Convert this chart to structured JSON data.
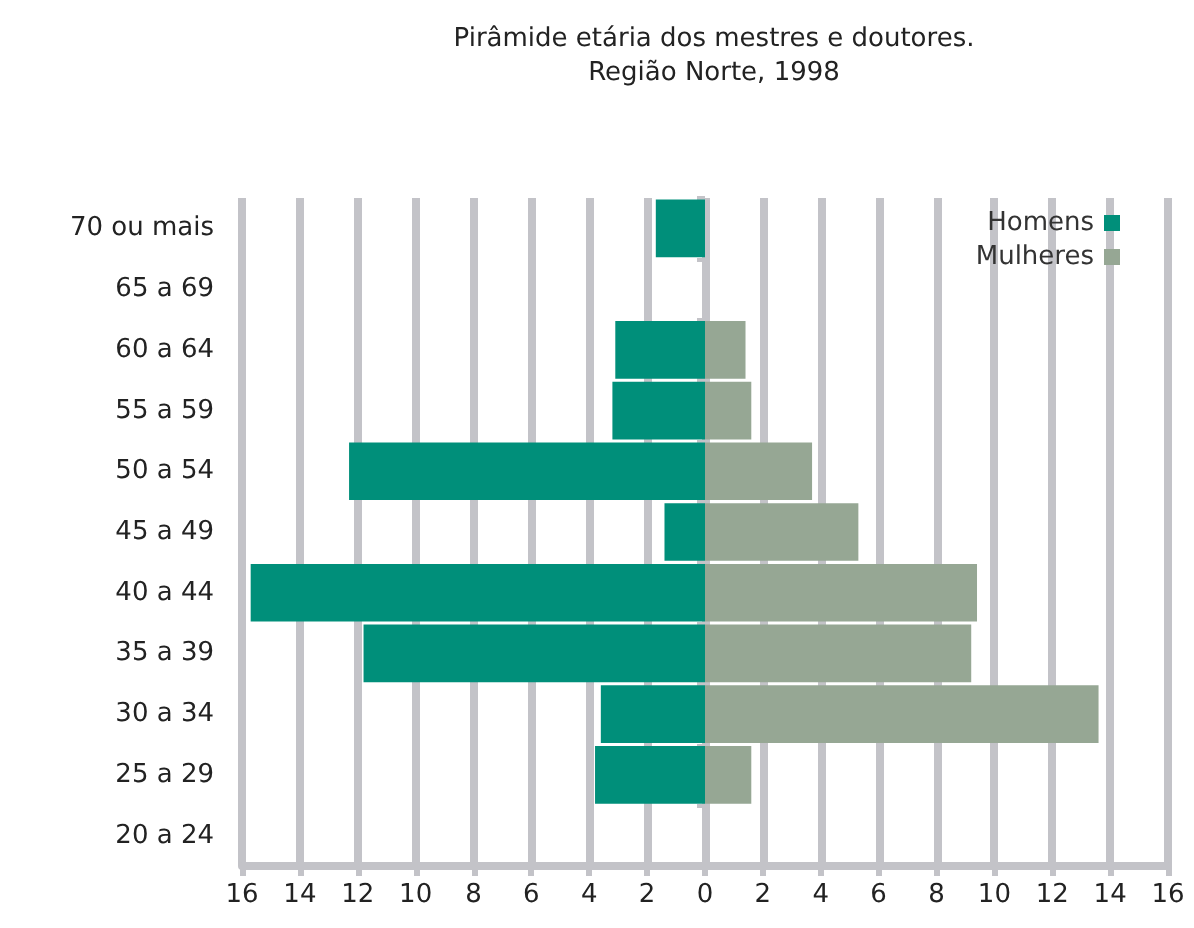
{
  "chart_data": {
    "type": "bar",
    "orientation": "horizontal",
    "stacked": true,
    "title": "Pirâmide etária dos mestres e doutores.",
    "subtitle": "Região Norte, 1998",
    "categories": [
      "70 ou mais",
      "65 a 69",
      "60 a 64",
      "55 a 59",
      "50 a 54",
      "45 a 49",
      "40 a 44",
      "35 a 39",
      "30 a 34",
      "25 a 29",
      "20 a 24"
    ],
    "series": [
      {
        "name": "Homens",
        "color": "#008f7a",
        "values": [
          -1.7,
          null,
          -3.1,
          -3.2,
          -12.3,
          -1.4,
          -15.7,
          -11.8,
          -3.6,
          -3.8,
          null
        ]
      },
      {
        "name": "Mulheres",
        "color": "#96a794",
        "values": [
          null,
          null,
          1.4,
          1.6,
          3.7,
          5.3,
          9.4,
          9.2,
          13.6,
          1.6,
          null
        ]
      }
    ],
    "xlim": [
      -16,
      16
    ],
    "xticks": [
      {
        "value": -16,
        "label": "16"
      },
      {
        "value": -14,
        "label": "14"
      },
      {
        "value": -12,
        "label": "12"
      },
      {
        "value": -10,
        "label": "10"
      },
      {
        "value": -8,
        "label": "8"
      },
      {
        "value": -6,
        "label": "6"
      },
      {
        "value": -4,
        "label": "4"
      },
      {
        "value": -2,
        "label": "2"
      },
      0,
      2,
      4,
      6,
      8,
      10,
      12,
      14,
      16
    ],
    "grid": "x",
    "legend": "top right"
  }
}
